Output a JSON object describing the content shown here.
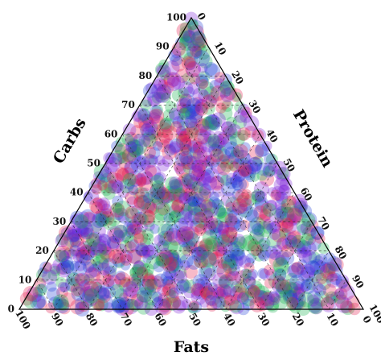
{
  "chart_data": {
    "type": "scatter",
    "subtype": "ternary",
    "title": "",
    "axes": {
      "left": {
        "label": "Carbs",
        "ticks": [
          0,
          10,
          20,
          30,
          40,
          50,
          60,
          70,
          80,
          90,
          100
        ]
      },
      "right": {
        "label": "Protein",
        "ticks": [
          0,
          10,
          20,
          30,
          40,
          50,
          60,
          70,
          80,
          90,
          100
        ]
      },
      "bottom": {
        "label": "Fats",
        "ticks": [
          100,
          90,
          80,
          70,
          60,
          50,
          40,
          30,
          20,
          10,
          0
        ]
      }
    },
    "range": [
      0,
      100
    ],
    "grid": true,
    "grid_step": 10,
    "marker": {
      "shape": "circle",
      "alpha": 0.3,
      "palette": [
        "#e6194b",
        "#1f3bd6",
        "#12b04a",
        "#7a1fd6"
      ]
    },
    "point_count": 1400,
    "point_distribution": "dense, roughly uniform over the whole simplex",
    "legend": "none"
  }
}
